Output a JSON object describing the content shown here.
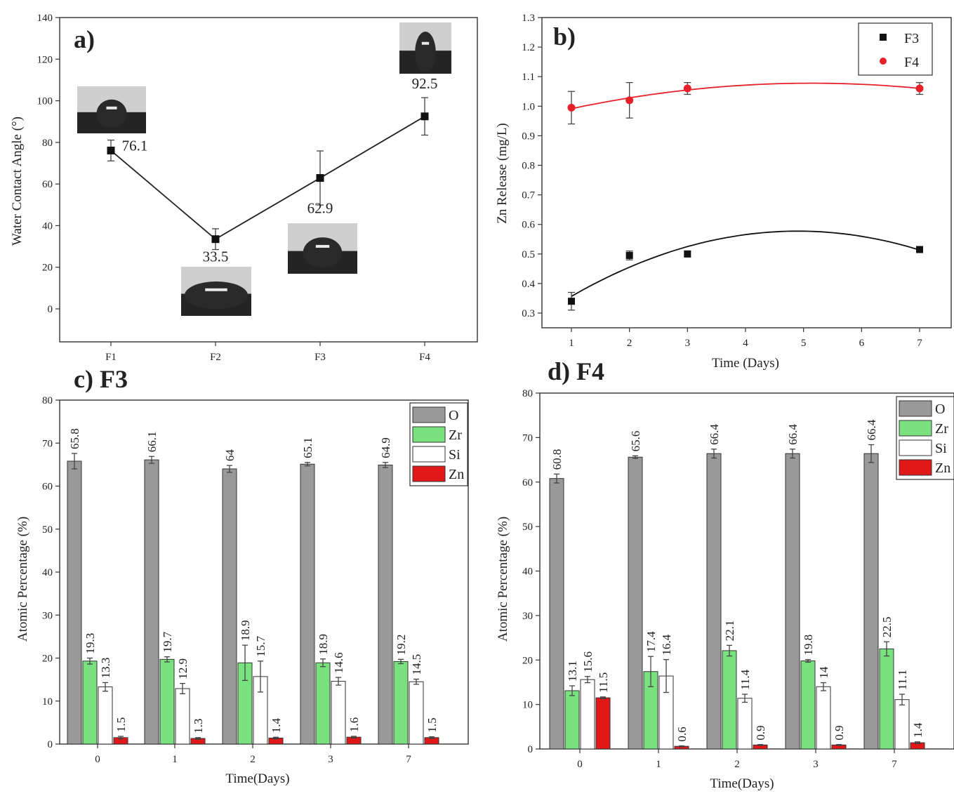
{
  "chart_data": [
    {
      "panel": "a)",
      "type": "line",
      "title": "",
      "xlabel": "",
      "ylabel": "Water Contact Angle (°)",
      "ylim": [
        -15,
        140
      ],
      "yticks": [
        0,
        20,
        40,
        60,
        80,
        100,
        120,
        140
      ],
      "categories": [
        "F1",
        "F2",
        "F3",
        "F4"
      ],
      "values": [
        76.1,
        33.5,
        62.9,
        92.5
      ],
      "errors": [
        5,
        5,
        13,
        9
      ],
      "point_labels": [
        "76.1",
        "33.5",
        "62.9",
        "92.5"
      ],
      "marker_color": "#111111"
    },
    {
      "panel": "b)",
      "type": "scatter",
      "xlabel": "Time (Days)",
      "ylabel": "Zn Release (mg/L)",
      "xlim": [
        0.3,
        7.5
      ],
      "ylim": [
        0.25,
        1.3
      ],
      "xticks": [
        "1",
        "2",
        "3",
        "4",
        "5",
        "6",
        "7"
      ],
      "yticks": [
        "0.3",
        "0.4",
        "0.5",
        "0.6",
        "0.7",
        "0.8",
        "0.9",
        "1.0",
        "1.1",
        "1.2",
        "1.3"
      ],
      "legend_position": "top-right",
      "series": [
        {
          "name": "F3",
          "color": "#111111",
          "x": [
            1,
            2,
            3,
            7
          ],
          "y": [
            0.34,
            0.495,
            0.5,
            0.515
          ],
          "errors": [
            0.03,
            0.015,
            0.01,
            0.01
          ]
        },
        {
          "name": "F4",
          "color": "#e8202a",
          "x": [
            1,
            2,
            3,
            7
          ],
          "y": [
            0.995,
            1.02,
            1.06,
            1.06
          ],
          "errors": [
            0.055,
            0.06,
            0.02,
            0.02
          ]
        }
      ]
    },
    {
      "panel": "c) F3",
      "type": "bar",
      "xlabel": "Time(Days)",
      "ylabel": "Atomic Percentage (%)",
      "ylim": [
        0,
        80
      ],
      "yticks": [
        0,
        10,
        20,
        30,
        40,
        50,
        60,
        70,
        80
      ],
      "categories": [
        "0",
        "1",
        "2",
        "3",
        "7"
      ],
      "legend_position": "top-right",
      "series": [
        {
          "name": "O",
          "color": "#999999",
          "values": [
            65.8,
            66.1,
            64,
            65.1,
            64.9
          ],
          "errors": [
            1.8,
            0.8,
            0.8,
            0.4,
            0.6
          ],
          "labels": [
            "65.8",
            "66.1",
            "64",
            "65.1",
            "64.9"
          ]
        },
        {
          "name": "Zr",
          "color": "#79e27e",
          "values": [
            19.3,
            19.7,
            18.9,
            18.9,
            19.2
          ],
          "errors": [
            0.7,
            0.6,
            4.1,
            0.9,
            0.5
          ],
          "labels": [
            "19.3",
            "19.7",
            "18.9",
            "18.9",
            "19.2"
          ]
        },
        {
          "name": "Si",
          "color": "#ffffff",
          "values": [
            13.3,
            12.9,
            15.7,
            14.6,
            14.5
          ],
          "errors": [
            1.0,
            1.2,
            3.6,
            0.9,
            0.6
          ],
          "labels": [
            "13.3",
            "12.9",
            "15.7",
            "14.6",
            "14.5"
          ]
        },
        {
          "name": "Zn",
          "color": "#e21818",
          "values": [
            1.5,
            1.3,
            1.4,
            1.6,
            1.5
          ],
          "errors": [
            0.3,
            0.2,
            0.2,
            0.2,
            0.2
          ],
          "labels": [
            "1.5",
            "1.3",
            "1.4",
            "1.6",
            "1.5"
          ]
        }
      ]
    },
    {
      "panel": "d) F4",
      "type": "bar",
      "xlabel": "Time(Days)",
      "ylabel": "Atomic Percentage (%)",
      "ylim": [
        0,
        80
      ],
      "yticks": [
        0,
        10,
        20,
        30,
        40,
        50,
        60,
        70,
        80
      ],
      "categories": [
        "0",
        "1",
        "2",
        "3",
        "7"
      ],
      "legend_position": "top-right",
      "series": [
        {
          "name": "O",
          "color": "#999999",
          "values": [
            60.8,
            65.6,
            66.4,
            66.4,
            66.4
          ],
          "errors": [
            1.0,
            0.3,
            1.0,
            1.0,
            2.0
          ],
          "labels": [
            "60.8",
            "65.6",
            "66.4",
            "66.4",
            "66.4"
          ]
        },
        {
          "name": "Zr",
          "color": "#79e27e",
          "values": [
            13.1,
            17.4,
            22.1,
            19.8,
            22.5
          ],
          "errors": [
            1.1,
            3.4,
            1.2,
            0.3,
            1.6
          ],
          "labels": [
            "13.1",
            "17.4",
            "22.1",
            "19.8",
            "22.5"
          ]
        },
        {
          "name": "Si",
          "color": "#ffffff",
          "values": [
            15.6,
            16.4,
            11.4,
            14,
            11.1
          ],
          "errors": [
            0.7,
            3.7,
            0.9,
            0.9,
            1.2
          ],
          "labels": [
            "15.6",
            "16.4",
            "11.4",
            "14",
            "11.1"
          ]
        },
        {
          "name": "Zn",
          "color": "#e21818",
          "values": [
            11.5,
            0.6,
            0.9,
            0.9,
            1.4
          ],
          "errors": [
            0.2,
            0.1,
            0.1,
            0.1,
            0.2
          ],
          "labels": [
            "11.5",
            "0.6",
            "0.9",
            "0.9",
            "1.4"
          ]
        }
      ]
    }
  ]
}
